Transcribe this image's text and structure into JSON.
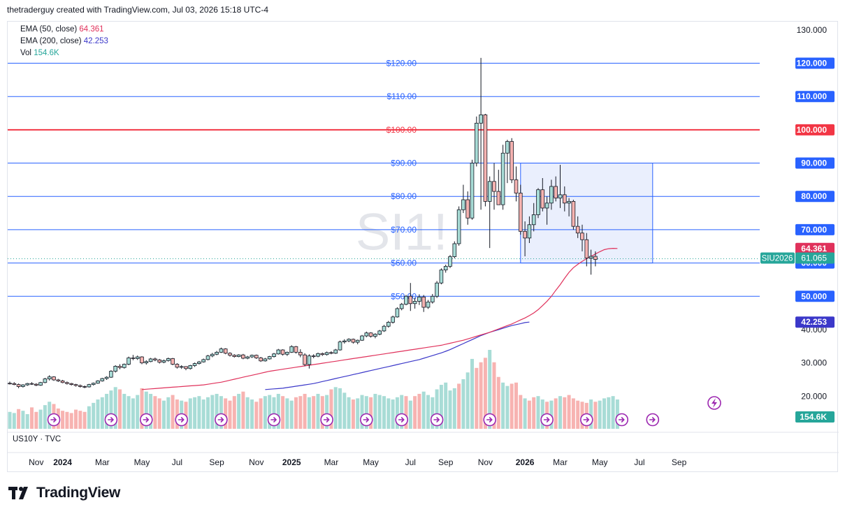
{
  "header": {
    "attribution": "thetraderguy created with TradingView.com, Jul 03, 2026 15:18 UTC-4"
  },
  "legend": [
    {
      "label": "EMA (50, close)",
      "value": "64.361",
      "color": "#e0315b"
    },
    {
      "label": "EMA (200, close)",
      "value": "42.253",
      "color": "#3b38c9"
    },
    {
      "label": "Vol",
      "value": "154.6K",
      "color": "#26a69a"
    }
  ],
  "watermark": "SI1!",
  "sub_pane_label": "US10Y · TVC",
  "brand": {
    "name": "TradingView"
  },
  "colors": {
    "up": "#26a69a",
    "down": "#ef5350",
    "level": "#2962ff",
    "level_red": "#f23645",
    "ema50": "#e0315b",
    "ema200": "#3b38c9",
    "box_fill": "#e3eafc",
    "box_border": "#2962ff"
  },
  "chart_data": {
    "type": "candlestick",
    "symbol": "SIU2026",
    "last_price": "61.065",
    "y_ticks": [
      "130.000",
      "120.000",
      "110.000",
      "100.000",
      "90.000",
      "80.000",
      "70.000",
      "60.000",
      "50.000",
      "40.000",
      "30.000",
      "20.000"
    ],
    "ylim": [
      10,
      135
    ],
    "x_ticks": [
      {
        "label": "Nov",
        "i": 6
      },
      {
        "label": "2024",
        "i": 12,
        "bold": true
      },
      {
        "label": "Mar",
        "i": 21
      },
      {
        "label": "May",
        "i": 30
      },
      {
        "label": "Jul",
        "i": 38
      },
      {
        "label": "Sep",
        "i": 47
      },
      {
        "label": "Nov",
        "i": 56
      },
      {
        "label": "2025",
        "i": 64,
        "bold": true
      },
      {
        "label": "Mar",
        "i": 73
      },
      {
        "label": "May",
        "i": 82
      },
      {
        "label": "Jul",
        "i": 91
      },
      {
        "label": "Sep",
        "i": 99
      },
      {
        "label": "Nov",
        "i": 108
      },
      {
        "label": "2026",
        "i": 117,
        "bold": true
      },
      {
        "label": "Mar",
        "i": 125
      },
      {
        "label": "May",
        "i": 134
      },
      {
        "label": "Jul",
        "i": 143
      },
      {
        "label": "Sep",
        "i": 152
      }
    ],
    "levels": [
      {
        "label": "$120.00",
        "axis": "120.000",
        "value": 120,
        "color": "#2962ff"
      },
      {
        "label": "$110.00",
        "axis": "110.000",
        "value": 110,
        "color": "#2962ff"
      },
      {
        "label": "$100.00",
        "axis": "100.000",
        "value": 100,
        "color": "#f23645",
        "bold": true
      },
      {
        "label": "$90.00",
        "axis": "90.000",
        "value": 90,
        "color": "#2962ff"
      },
      {
        "label": "$80.00",
        "axis": "80.000",
        "value": 80,
        "color": "#2962ff"
      },
      {
        "label": "$70.00",
        "axis": "70.000",
        "value": 70,
        "color": "#2962ff"
      },
      {
        "label": "$60.00",
        "axis": "60.000",
        "value": 60,
        "color": "#2962ff"
      },
      {
        "label": "$50.00",
        "axis": "50.000",
        "value": 50,
        "color": "#2962ff"
      }
    ],
    "box": {
      "i_start": 116,
      "i_end": 146,
      "y_low": 60,
      "y_high": 90
    },
    "ema50_badge": "64.361",
    "ema200_badge": "42.253",
    "volume_badge": "154.6K",
    "event_markers_i": [
      10,
      23,
      31,
      39,
      48,
      60,
      72,
      81,
      89,
      97,
      109,
      122,
      131,
      139,
      146
    ],
    "ohlc": [
      [
        23.9,
        24.4,
        23.5,
        23.8
      ],
      [
        23.8,
        24.2,
        23.3,
        23.5
      ],
      [
        23.5,
        23.8,
        22.4,
        22.9
      ],
      [
        22.9,
        23.6,
        22.6,
        23.4
      ],
      [
        23.4,
        24.0,
        23.1,
        23.8
      ],
      [
        23.8,
        24.2,
        23.4,
        23.6
      ],
      [
        23.6,
        23.9,
        23.0,
        23.3
      ],
      [
        23.3,
        24.3,
        23.1,
        24.1
      ],
      [
        24.1,
        25.5,
        23.9,
        25.2
      ],
      [
        25.2,
        26.3,
        24.7,
        25.8
      ],
      [
        25.8,
        26.0,
        24.6,
        24.9
      ],
      [
        24.9,
        25.2,
        24.3,
        24.6
      ],
      [
        24.6,
        24.9,
        23.9,
        24.1
      ],
      [
        24.1,
        24.4,
        23.5,
        23.8
      ],
      [
        23.8,
        24.0,
        23.2,
        23.5
      ],
      [
        23.5,
        23.7,
        22.9,
        23.2
      ],
      [
        23.2,
        23.5,
        22.6,
        22.9
      ],
      [
        22.9,
        23.2,
        22.4,
        22.8
      ],
      [
        22.8,
        23.7,
        22.6,
        23.5
      ],
      [
        23.5,
        24.1,
        23.2,
        23.9
      ],
      [
        23.9,
        24.8,
        23.7,
        24.6
      ],
      [
        24.6,
        25.5,
        24.4,
        25.3
      ],
      [
        25.3,
        26.0,
        24.9,
        25.7
      ],
      [
        25.7,
        27.8,
        25.5,
        27.5
      ],
      [
        27.5,
        29.3,
        27.1,
        29.0
      ],
      [
        29.0,
        29.6,
        28.1,
        28.6
      ],
      [
        28.6,
        29.8,
        28.3,
        29.6
      ],
      [
        29.6,
        31.9,
        29.3,
        31.5
      ],
      [
        31.5,
        32.4,
        30.8,
        31.3
      ],
      [
        31.3,
        32.2,
        30.9,
        31.8
      ],
      [
        31.8,
        32.0,
        29.6,
        30.0
      ],
      [
        30.0,
        30.8,
        29.5,
        30.4
      ],
      [
        30.4,
        31.5,
        30.2,
        31.2
      ],
      [
        31.2,
        31.6,
        30.5,
        30.9
      ],
      [
        30.9,
        31.2,
        29.8,
        30.2
      ],
      [
        30.2,
        31.0,
        29.9,
        30.7
      ],
      [
        30.7,
        31.6,
        30.4,
        31.3
      ],
      [
        31.3,
        31.5,
        29.3,
        29.6
      ],
      [
        29.6,
        29.9,
        28.3,
        28.7
      ],
      [
        28.7,
        29.3,
        28.2,
        28.9
      ],
      [
        28.9,
        29.0,
        27.8,
        28.3
      ],
      [
        28.3,
        29.4,
        28.0,
        29.2
      ],
      [
        29.2,
        30.1,
        28.8,
        29.8
      ],
      [
        29.8,
        30.6,
        29.5,
        30.3
      ],
      [
        30.3,
        31.3,
        30.1,
        31.0
      ],
      [
        31.0,
        32.4,
        30.8,
        32.1
      ],
      [
        32.1,
        33.0,
        31.7,
        32.6
      ],
      [
        32.6,
        33.6,
        32.3,
        33.2
      ],
      [
        33.2,
        34.6,
        33.0,
        34.2
      ],
      [
        34.2,
        34.4,
        32.6,
        32.9
      ],
      [
        32.9,
        33.2,
        31.9,
        32.3
      ],
      [
        32.3,
        32.6,
        31.6,
        31.9
      ],
      [
        31.9,
        32.6,
        31.7,
        32.4
      ],
      [
        32.4,
        32.7,
        31.1,
        31.4
      ],
      [
        31.4,
        32.1,
        31.1,
        31.8
      ],
      [
        31.8,
        32.5,
        31.5,
        32.3
      ],
      [
        32.3,
        32.5,
        31.2,
        31.5
      ],
      [
        31.5,
        31.8,
        30.3,
        30.6
      ],
      [
        30.6,
        31.5,
        30.4,
        31.2
      ],
      [
        31.2,
        32.1,
        31.0,
        31.9
      ],
      [
        31.9,
        33.0,
        31.6,
        32.7
      ],
      [
        32.7,
        34.2,
        32.5,
        33.9
      ],
      [
        33.9,
        34.1,
        32.2,
        32.6
      ],
      [
        32.6,
        33.4,
        32.1,
        33.2
      ],
      [
        33.2,
        35.3,
        33.0,
        34.9
      ],
      [
        34.9,
        35.1,
        32.8,
        33.2
      ],
      [
        33.2,
        34.1,
        31.7,
        32.4
      ],
      [
        32.4,
        32.9,
        29.0,
        29.5
      ],
      [
        29.5,
        32.6,
        28.3,
        32.1
      ],
      [
        32.1,
        32.6,
        31.4,
        32.0
      ],
      [
        32.0,
        33.1,
        31.7,
        32.8
      ],
      [
        32.8,
        33.1,
        32.1,
        32.5
      ],
      [
        32.5,
        33.4,
        32.2,
        33.1
      ],
      [
        33.1,
        33.5,
        32.6,
        32.9
      ],
      [
        32.9,
        34.2,
        32.7,
        33.9
      ],
      [
        33.9,
        36.7,
        33.7,
        36.3
      ],
      [
        36.3,
        37.1,
        35.8,
        36.6
      ],
      [
        36.6,
        37.4,
        36.2,
        37.1
      ],
      [
        37.1,
        37.3,
        35.8,
        36.2
      ],
      [
        36.2,
        37.0,
        35.6,
        36.8
      ],
      [
        36.8,
        38.4,
        36.6,
        38.1
      ],
      [
        38.1,
        39.4,
        37.7,
        39.0
      ],
      [
        39.0,
        39.2,
        37.6,
        38.0
      ],
      [
        38.0,
        38.9,
        37.4,
        38.6
      ],
      [
        38.6,
        39.9,
        38.3,
        39.6
      ],
      [
        39.6,
        41.4,
        39.3,
        41.0
      ],
      [
        41.0,
        42.6,
        40.6,
        42.2
      ],
      [
        42.2,
        44.2,
        41.8,
        43.8
      ],
      [
        43.8,
        46.7,
        43.6,
        46.3
      ],
      [
        46.3,
        48.0,
        45.8,
        47.6
      ],
      [
        47.6,
        50.4,
        47.3,
        50.0
      ],
      [
        50.0,
        54.0,
        45.6,
        47.8
      ],
      [
        47.8,
        49.6,
        46.3,
        48.5
      ],
      [
        48.5,
        50.6,
        47.4,
        49.8
      ],
      [
        49.8,
        50.4,
        45.3,
        46.7
      ],
      [
        46.7,
        48.9,
        46.2,
        48.3
      ],
      [
        48.3,
        50.7,
        47.8,
        50.0
      ],
      [
        50.0,
        54.6,
        49.5,
        54.0
      ],
      [
        54.0,
        58.4,
        53.6,
        57.9
      ],
      [
        57.9,
        59.5,
        57.1,
        59.0
      ],
      [
        59.0,
        62.4,
        58.5,
        61.9
      ],
      [
        61.9,
        66.5,
        61.4,
        65.8
      ],
      [
        65.8,
        77.0,
        65.2,
        76.0
      ],
      [
        76.0,
        83.5,
        75.0,
        79.0
      ],
      [
        79.0,
        81.5,
        71.5,
        73.5
      ],
      [
        73.5,
        91.0,
        73.0,
        90.0
      ],
      [
        90.0,
        104.0,
        89.0,
        102.0
      ],
      [
        102.0,
        121.6,
        76.0,
        104.5
      ],
      [
        104.5,
        104.8,
        77.0,
        78.5
      ],
      [
        78.5,
        86.0,
        64.5,
        84.5
      ],
      [
        84.5,
        90.0,
        76.0,
        81.5
      ],
      [
        81.5,
        88.0,
        77.5,
        77.5
      ],
      [
        77.5,
        95.5,
        76.0,
        93.0
      ],
      [
        93.0,
        97.0,
        84.0,
        96.5
      ],
      [
        96.5,
        97.5,
        84.0,
        85.0
      ],
      [
        85.0,
        89.0,
        78.5,
        81.0
      ],
      [
        81.0,
        83.5,
        68.5,
        69.5
      ],
      [
        69.5,
        72.5,
        62.0,
        67.5
      ],
      [
        67.5,
        74.0,
        66.0,
        71.5
      ],
      [
        71.5,
        78.0,
        69.5,
        74.5
      ],
      [
        74.5,
        82.5,
        73.5,
        82.0
      ],
      [
        82.0,
        85.5,
        75.5,
        76.5
      ],
      [
        76.5,
        80.0,
        71.5,
        78.0
      ],
      [
        78.0,
        85.0,
        76.0,
        83.0
      ],
      [
        83.0,
        86.0,
        78.5,
        79.5
      ],
      [
        79.5,
        89.5,
        76.5,
        80.5
      ],
      [
        80.5,
        83.0,
        75.5,
        78.0
      ],
      [
        78.0,
        79.5,
        74.0,
        78.5
      ],
      [
        78.5,
        79.0,
        70.0,
        71.0
      ],
      [
        71.0,
        74.0,
        67.5,
        69.0
      ],
      [
        69.0,
        71.5,
        63.5,
        67.0
      ],
      [
        67.0,
        69.0,
        59.0,
        61.5
      ],
      [
        61.5,
        64.0,
        56.5,
        62.0
      ],
      [
        62.0,
        63.5,
        59.0,
        61.065
      ]
    ],
    "volume": [
      30,
      28,
      35,
      32,
      26,
      38,
      30,
      34,
      42,
      48,
      44,
      36,
      32,
      30,
      28,
      34,
      32,
      30,
      40,
      46,
      52,
      56,
      62,
      68,
      74,
      70,
      62,
      58,
      54,
      60,
      72,
      66,
      62,
      58,
      54,
      50,
      56,
      60,
      52,
      50,
      48,
      54,
      56,
      58,
      52,
      56,
      60,
      62,
      58,
      54,
      50,
      58,
      62,
      66,
      56,
      52,
      48,
      54,
      58,
      60,
      56,
      62,
      58,
      54,
      50,
      56,
      58,
      62,
      56,
      58,
      62,
      58,
      60,
      70,
      74,
      72,
      64,
      56,
      52,
      54,
      60,
      58,
      56,
      62,
      60,
      58,
      54,
      52,
      56,
      60,
      58,
      50,
      58,
      62,
      66,
      60,
      56,
      70,
      78,
      82,
      68,
      72,
      80,
      88,
      100,
      124,
      108,
      118,
      126,
      140,
      118,
      92,
      82,
      76,
      80,
      82,
      60,
      54,
      50,
      56,
      58,
      52,
      48,
      50,
      54,
      58,
      56,
      60,
      54,
      50,
      48,
      46,
      52,
      48,
      50,
      54,
      56,
      58,
      52
    ],
    "volume_down_indices": [
      2,
      5,
      6,
      10,
      11,
      12,
      13,
      14,
      15,
      16,
      17,
      25,
      30,
      33,
      34,
      37,
      38,
      40,
      49,
      50,
      51,
      53,
      56,
      57,
      62,
      65,
      66,
      67,
      69,
      71,
      73,
      78,
      82,
      90,
      92,
      93,
      102,
      106,
      107,
      108,
      110,
      111,
      114,
      115,
      116,
      118,
      119,
      122,
      124,
      126,
      127,
      128,
      129,
      130,
      131,
      133
    ],
    "ema50": [
      22.0,
      22.1,
      22.2,
      22.3,
      22.4,
      22.5,
      22.6,
      22.7,
      22.8,
      22.9,
      23.0,
      23.1,
      23.2,
      23.3,
      23.4,
      23.6,
      23.8,
      24.0,
      24.2,
      24.5,
      24.8,
      25.1,
      25.4,
      25.7,
      26.0,
      26.3,
      26.6,
      26.9,
      27.2,
      27.5,
      27.7,
      27.9,
      28.1,
      28.3,
      28.5,
      28.7,
      28.9,
      29.1,
      29.3,
      29.5,
      29.7,
      29.9,
      30.1,
      30.3,
      30.5,
      30.7,
      30.9,
      31.1,
      31.3,
      31.5,
      31.7,
      31.9,
      32.1,
      32.3,
      32.5,
      32.7,
      32.9,
      33.1,
      33.3,
      33.5,
      33.7,
      33.9,
      34.1,
      34.3,
      34.5,
      34.7,
      34.9,
      35.1,
      35.3,
      35.6,
      35.9,
      36.2,
      36.5,
      36.8,
      37.2,
      37.6,
      38.0,
      38.4,
      38.8,
      39.2,
      39.7,
      40.2,
      40.7,
      41.2,
      41.7,
      42.3,
      42.9,
      43.5,
      44.2,
      45.0,
      46.0,
      47.2,
      48.5,
      50.0,
      51.8,
      53.5,
      55.4,
      57.2,
      58.6,
      59.6,
      60.5,
      61.3,
      62.0,
      62.7,
      63.4,
      64.0,
      64.3,
      64.4,
      64.361
    ],
    "ema50_start_i": 30,
    "ema200": [
      22.0,
      22.1,
      22.2,
      22.3,
      22.4,
      22.6,
      22.8,
      23.0,
      23.2,
      23.4,
      23.6,
      23.8,
      24.1,
      24.4,
      24.7,
      25.0,
      25.3,
      25.6,
      25.9,
      26.2,
      26.5,
      26.8,
      27.1,
      27.4,
      27.7,
      28.0,
      28.3,
      28.6,
      28.9,
      29.2,
      29.5,
      29.8,
      30.1,
      30.4,
      30.7,
      31.0,
      31.4,
      31.8,
      32.2,
      32.6,
      33.0,
      33.5,
      34.0,
      34.6,
      35.2,
      35.8,
      36.4,
      37.0,
      37.6,
      38.2,
      38.7,
      39.2,
      39.6,
      40.0,
      40.4,
      40.8,
      41.2,
      41.5,
      41.8,
      42.1,
      42.253
    ],
    "ema200_start_i": 58
  }
}
